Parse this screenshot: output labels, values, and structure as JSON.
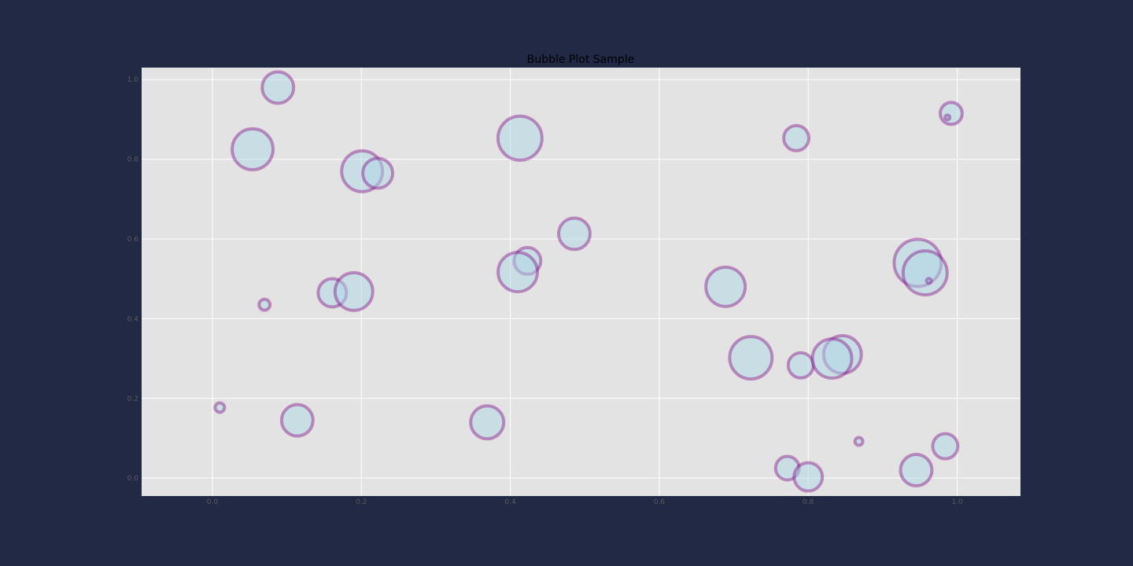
{
  "colors": {
    "page_background": "#222945",
    "plot_background": "#e3e3e3",
    "grid": "#ffffff",
    "bubble_fill": "#add8e6",
    "bubble_edge": "#800080",
    "title_text": "#000000",
    "tick_text": "#5a5a5a"
  },
  "chart_data": {
    "type": "scatter",
    "variant": "bubble",
    "title": "Bubble Plot Sample",
    "xlabel": "",
    "ylabel": "",
    "xlim": [
      -0.095,
      1.085
    ],
    "ylim": [
      -0.045,
      1.03
    ],
    "grid": true,
    "legend": "none",
    "x_ticks": [
      0.0,
      0.2,
      0.4,
      0.6,
      0.8,
      1.0
    ],
    "x_tick_labels": [
      "0.0",
      "0.2",
      "0.4",
      "0.6",
      "0.8",
      "1.0"
    ],
    "y_ticks": [
      0.0,
      0.2,
      0.4,
      0.6,
      0.8,
      1.0
    ],
    "y_tick_labels": [
      "0.0",
      "0.2",
      "0.4",
      "0.6",
      "0.8",
      "1.0"
    ],
    "size_unit": "relative bubble size",
    "points": [
      {
        "x": 0.088,
        "y": 0.98,
        "size": 20
      },
      {
        "x": 0.054,
        "y": 0.825,
        "size": 26
      },
      {
        "x": 0.201,
        "y": 0.77,
        "size": 26
      },
      {
        "x": 0.222,
        "y": 0.765,
        "size": 19
      },
      {
        "x": 0.07,
        "y": 0.435,
        "size": 7
      },
      {
        "x": 0.161,
        "y": 0.465,
        "size": 18
      },
      {
        "x": 0.19,
        "y": 0.468,
        "size": 24
      },
      {
        "x": 0.01,
        "y": 0.177,
        "size": 6
      },
      {
        "x": 0.114,
        "y": 0.145,
        "size": 20
      },
      {
        "x": 0.369,
        "y": 0.14,
        "size": 21
      },
      {
        "x": 0.413,
        "y": 0.853,
        "size": 28
      },
      {
        "x": 0.423,
        "y": 0.545,
        "size": 17
      },
      {
        "x": 0.41,
        "y": 0.517,
        "size": 25
      },
      {
        "x": 0.486,
        "y": 0.613,
        "size": 20
      },
      {
        "x": 0.689,
        "y": 0.48,
        "size": 25
      },
      {
        "x": 0.723,
        "y": 0.302,
        "size": 27
      },
      {
        "x": 0.784,
        "y": 0.853,
        "size": 16
      },
      {
        "x": 0.79,
        "y": 0.283,
        "size": 16
      },
      {
        "x": 0.846,
        "y": 0.31,
        "size": 24
      },
      {
        "x": 0.832,
        "y": 0.3,
        "size": 25
      },
      {
        "x": 0.772,
        "y": 0.025,
        "size": 15
      },
      {
        "x": 0.8,
        "y": 0.003,
        "size": 18
      },
      {
        "x": 0.868,
        "y": 0.092,
        "size": 5
      },
      {
        "x": 0.947,
        "y": 0.54,
        "size": 30
      },
      {
        "x": 0.957,
        "y": 0.515,
        "size": 28
      },
      {
        "x": 0.962,
        "y": 0.495,
        "size": 3
      },
      {
        "x": 0.945,
        "y": 0.02,
        "size": 20
      },
      {
        "x": 0.984,
        "y": 0.08,
        "size": 16
      },
      {
        "x": 0.992,
        "y": 0.915,
        "size": 14
      },
      {
        "x": 0.987,
        "y": 0.905,
        "size": 3
      }
    ]
  }
}
